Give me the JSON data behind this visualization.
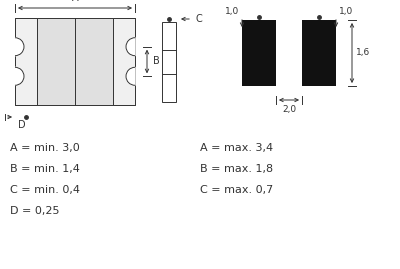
{
  "bg_color": "#ffffff",
  "line_color": "#333333",
  "fill_color_main": "#e0e0e0",
  "fill_color_contacts": "#f0f0f0",
  "black_fill": "#111111",
  "text_labels_left": [
    "A = min. 3,0",
    "B = min. 1,4",
    "C = min. 0,4",
    "D = 0,25"
  ],
  "text_labels_right": [
    "A = max. 3,4",
    "B = max. 1,8",
    "C = max. 0,7"
  ],
  "font_size_dim": 6.5,
  "font_size_label": 8.0
}
